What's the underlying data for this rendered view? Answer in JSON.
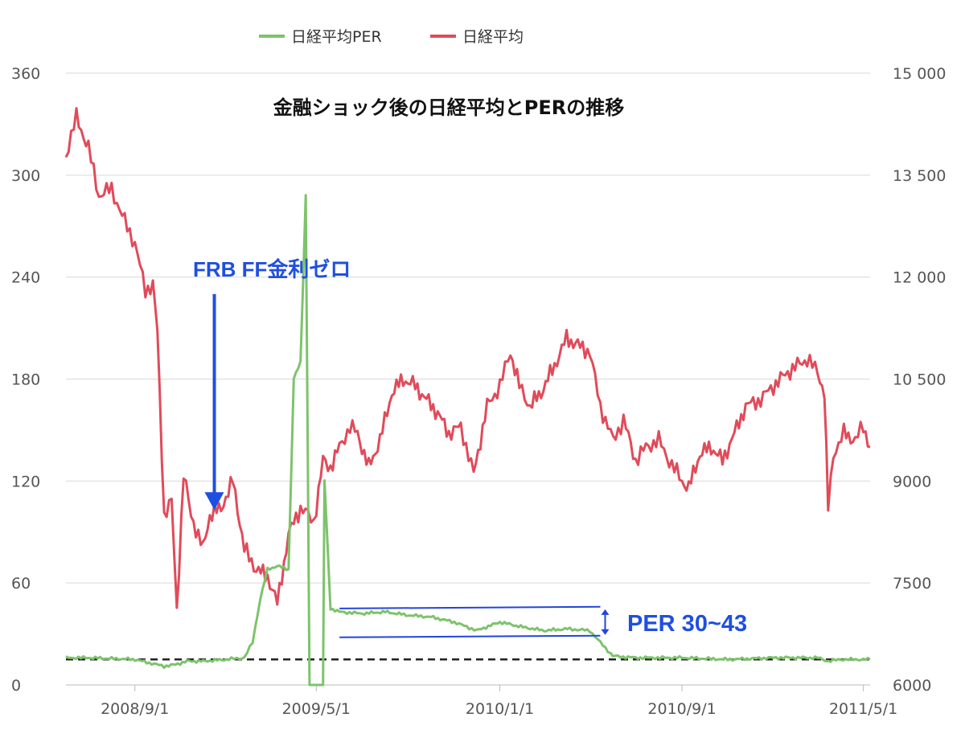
{
  "chart_data": {
    "type": "line",
    "title": "金融ショック後の日経平均とPERの推移",
    "x_ticks": [
      "2008/9/1",
      "2009/5/1",
      "2010/1/1",
      "2010/9/1",
      "2011/5/1"
    ],
    "y_left": {
      "ticks": [
        "0",
        "60",
        "120",
        "180",
        "240",
        "300",
        "360"
      ],
      "range": [
        0,
        360
      ]
    },
    "y_right": {
      "ticks": [
        "6000",
        "7500",
        "9000",
        "10 500",
        "12 000",
        "13 500",
        "15 000"
      ],
      "range": [
        6000,
        15000
      ]
    },
    "grid": true,
    "legend_position": "top-center",
    "series": [
      {
        "name": "日経平均PER",
        "axis": "left",
        "color": "#7dc36b",
        "points": [
          [
            "2008/6/1",
            16
          ],
          [
            "2008/7/1",
            16
          ],
          [
            "2008/8/1",
            15.5
          ],
          [
            "2008/9/1",
            15
          ],
          [
            "2008/9/20",
            13
          ],
          [
            "2008/10/10",
            11
          ],
          [
            "2008/10/25",
            12
          ],
          [
            "2008/11/10",
            14
          ],
          [
            "2008/12/1",
            14
          ],
          [
            "2009/1/1",
            15
          ],
          [
            "2009/1/25",
            16
          ],
          [
            "2009/2/5",
            25
          ],
          [
            "2009/2/15",
            50
          ],
          [
            "2009/2/25",
            68
          ],
          [
            "2009/3/10",
            70
          ],
          [
            "2009/3/25",
            68
          ],
          [
            "2009/4/1",
            180
          ],
          [
            "2009/4/10",
            190
          ],
          [
            "2009/4/17",
            288
          ],
          [
            "2009/4/22",
            0
          ],
          [
            "2009/5/10",
            0
          ],
          [
            "2009/5/12",
            120
          ],
          [
            "2009/5/20",
            45
          ],
          [
            "2009/6/1",
            43
          ],
          [
            "2009/7/1",
            42
          ],
          [
            "2009/8/1",
            43
          ],
          [
            "2009/9/1",
            41
          ],
          [
            "2009/10/1",
            40
          ],
          [
            "2009/11/1",
            37
          ],
          [
            "2009/12/1",
            32
          ],
          [
            "2010/1/1",
            37
          ],
          [
            "2010/2/1",
            34
          ],
          [
            "2010/3/1",
            32
          ],
          [
            "2010/4/1",
            33
          ],
          [
            "2010/5/1",
            32
          ],
          [
            "2010/5/15",
            25
          ],
          [
            "2010/6/1",
            17
          ],
          [
            "2010/7/1",
            16
          ],
          [
            "2010/9/1",
            16
          ],
          [
            "2010/11/1",
            15
          ],
          [
            "2011/1/1",
            16
          ],
          [
            "2011/3/1",
            16
          ],
          [
            "2011/3/15",
            14
          ],
          [
            "2011/4/1",
            15
          ],
          [
            "2011/5/1",
            15
          ],
          [
            "2011/5/10",
            15
          ]
        ]
      },
      {
        "name": "日経平均",
        "axis": "right",
        "color": "#e04b5a",
        "points": [
          [
            "2008/6/1",
            13800
          ],
          [
            "2008/6/15",
            14350
          ],
          [
            "2008/7/1",
            13900
          ],
          [
            "2008/7/15",
            13200
          ],
          [
            "2008/8/1",
            13300
          ],
          [
            "2008/8/15",
            12900
          ],
          [
            "2008/9/1",
            12500
          ],
          [
            "2008/9/15",
            11800
          ],
          [
            "2008/9/25",
            11900
          ],
          [
            "2008/10/1",
            11200
          ],
          [
            "2008/10/10",
            8500
          ],
          [
            "2008/10/20",
            8700
          ],
          [
            "2008/10/27",
            7100
          ],
          [
            "2008/11/5",
            9100
          ],
          [
            "2008/11/15",
            8500
          ],
          [
            "2008/12/1",
            8000
          ],
          [
            "2008/12/10",
            8500
          ],
          [
            "2008/12/25",
            8600
          ],
          [
            "2009/1/10",
            9000
          ],
          [
            "2009/1/25",
            8000
          ],
          [
            "2009/2/10",
            7700
          ],
          [
            "2009/2/25",
            7600
          ],
          [
            "2009/3/10",
            7200
          ],
          [
            "2009/3/25",
            8200
          ],
          [
            "2009/4/1",
            8400
          ],
          [
            "2009/4/10",
            8600
          ],
          [
            "2009/4/20",
            8500
          ],
          [
            "2009/4/28",
            8400
          ],
          [
            "2009/5/10",
            9300
          ],
          [
            "2009/5/20",
            9200
          ],
          [
            "2009/6/1",
            9500
          ],
          [
            "2009/6/15",
            9800
          ],
          [
            "2009/6/25",
            9700
          ],
          [
            "2009/7/10",
            9200
          ],
          [
            "2009/7/25",
            9600
          ],
          [
            "2009/8/10",
            10300
          ],
          [
            "2009/8/25",
            10500
          ],
          [
            "2009/9/10",
            10400
          ],
          [
            "2009/9/25",
            10200
          ],
          [
            "2009/10/10",
            10000
          ],
          [
            "2009/10/25",
            9700
          ],
          [
            "2009/11/10",
            9800
          ],
          [
            "2009/11/27",
            9100
          ],
          [
            "2009/12/15",
            10100
          ],
          [
            "2010/1/1",
            10400
          ],
          [
            "2010/1/15",
            10900
          ],
          [
            "2010/1/27",
            10400
          ],
          [
            "2010/2/10",
            10100
          ],
          [
            "2010/2/25",
            10300
          ],
          [
            "2010/3/15",
            10700
          ],
          [
            "2010/3/31",
            11100
          ],
          [
            "2010/4/15",
            11000
          ],
          [
            "2010/5/1",
            10900
          ],
          [
            "2010/5/15",
            10100
          ],
          [
            "2010/6/1",
            9600
          ],
          [
            "2010/6/15",
            9900
          ],
          [
            "2010/7/1",
            9300
          ],
          [
            "2010/7/15",
            9500
          ],
          [
            "2010/8/1",
            9600
          ],
          [
            "2010/8/15",
            9300
          ],
          [
            "2010/9/1",
            9000
          ],
          [
            "2010/9/10",
            8900
          ],
          [
            "2010/9/25",
            9400
          ],
          [
            "2010/10/10",
            9500
          ],
          [
            "2010/10/25",
            9300
          ],
          [
            "2010/11/10",
            9700
          ],
          [
            "2010/11/25",
            10100
          ],
          [
            "2010/12/15",
            10200
          ],
          [
            "2011/1/1",
            10400
          ],
          [
            "2011/1/20",
            10600
          ],
          [
            "2011/2/15",
            10800
          ],
          [
            "2011/3/1",
            10600
          ],
          [
            "2011/3/10",
            10300
          ],
          [
            "2011/3/15",
            8600
          ],
          [
            "2011/3/22",
            9400
          ],
          [
            "2011/4/5",
            9700
          ],
          [
            "2011/4/20",
            9600
          ],
          [
            "2011/5/1",
            9800
          ],
          [
            "2011/5/10",
            9500
          ]
        ]
      }
    ],
    "reference_line": {
      "axis": "left",
      "value": 15,
      "style": "dashed",
      "color": "#222222"
    },
    "annotations": [
      {
        "type": "text",
        "text": "FRB FF金利ゼロ",
        "color": "#1f4fe0"
      },
      {
        "type": "arrow",
        "from": [
          "2008/12/16",
          230
        ],
        "to": [
          "2008/12/16",
          103
        ],
        "color": "#1f4fe0"
      },
      {
        "type": "line",
        "points": [
          [
            "2009/6/1",
            45
          ],
          [
            "2010/5/15",
            46
          ]
        ],
        "color": "#2244dd"
      },
      {
        "type": "line",
        "points": [
          [
            "2009/6/1",
            28
          ],
          [
            "2010/5/15",
            29
          ]
        ],
        "color": "#2244dd"
      },
      {
        "type": "double_arrow",
        "x": "2010/5/15",
        "y_range": [
          30,
          43
        ],
        "color": "#2244dd"
      },
      {
        "type": "text",
        "text": "PER 30~43",
        "color": "#1f4fe0"
      }
    ]
  }
}
